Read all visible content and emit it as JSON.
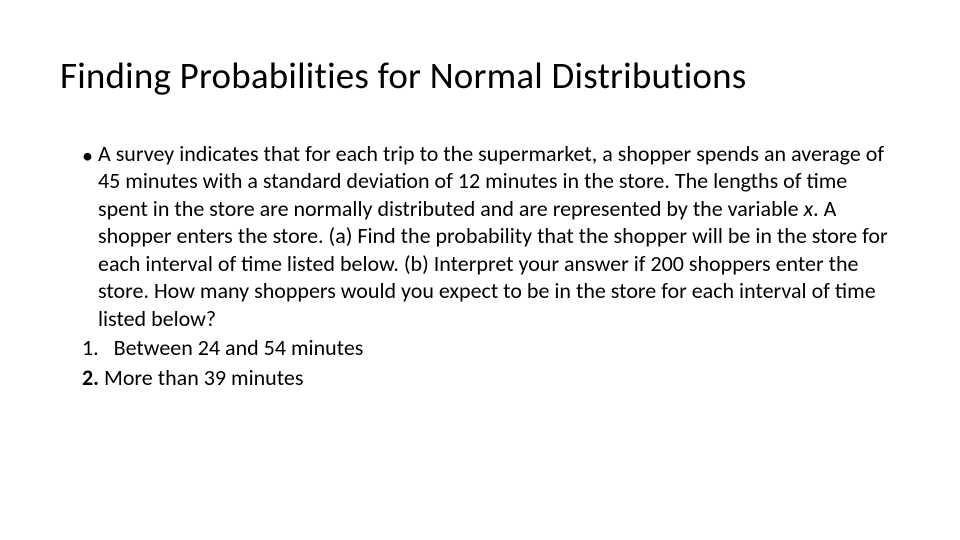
{
  "slide": {
    "title": "Finding Probabilities for Normal Distributions",
    "bullet_marker": "•",
    "paragraph_pre": "A survey indicates that for each trip to the supermarket, a shopper spends an average of 45 minutes with a standard deviation of 12 minutes in the store. The lengths of time spent in the store are normally distributed and are represented by the variable ",
    "paragraph_var": "x",
    "paragraph_post": ". A shopper enters the store. (a) Find the probability that the shopper will be in the store for each interval of time listed below. (b) Interpret your answer if 200 shoppers enter the store. How many shoppers would you expect to be in the store for each interval of time listed below?",
    "item1_num": "1.",
    "item1_text": "Between 24 and 54 minutes",
    "item2_num": "2.",
    "item2_text": "More than 39 minutes",
    "title_fontsize": 37,
    "body_fontsize": 22,
    "text_color": "#000000",
    "background_color": "#ffffff",
    "font_family": "Calibri"
  }
}
